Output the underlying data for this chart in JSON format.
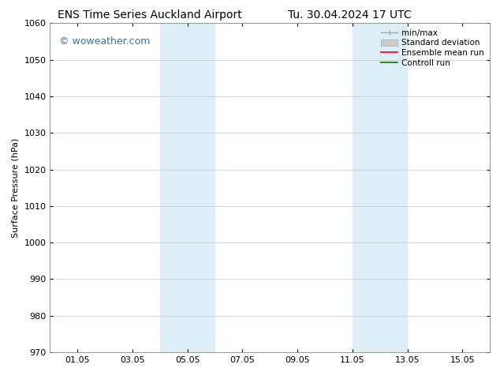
{
  "title_left": "ENS Time Series Auckland Airport",
  "title_right": "Tu. 30.04.2024 17 UTC",
  "ylabel": "Surface Pressure (hPa)",
  "ylim": [
    970,
    1060
  ],
  "yticks": [
    970,
    980,
    990,
    1000,
    1010,
    1020,
    1030,
    1040,
    1050,
    1060
  ],
  "xtick_labels": [
    "01.05",
    "03.05",
    "05.05",
    "07.05",
    "09.05",
    "11.05",
    "13.05",
    "15.05"
  ],
  "xtick_positions": [
    1,
    3,
    5,
    7,
    9,
    11,
    13,
    15
  ],
  "xlim": [
    0,
    16
  ],
  "shaded_bands": [
    {
      "x_start": 4.0,
      "x_end": 6.0
    },
    {
      "x_start": 11.0,
      "x_end": 13.0
    }
  ],
  "shade_color": "#ddeef8",
  "watermark": "© woweather.com",
  "watermark_color": "#3377bb",
  "background_color": "#ffffff",
  "plot_bg_color": "#ffffff",
  "grid_color": "#c8c8c8",
  "title_fontsize": 10,
  "axis_label_fontsize": 8,
  "tick_fontsize": 8,
  "legend_fontsize": 7.5,
  "watermark_fontsize": 9
}
